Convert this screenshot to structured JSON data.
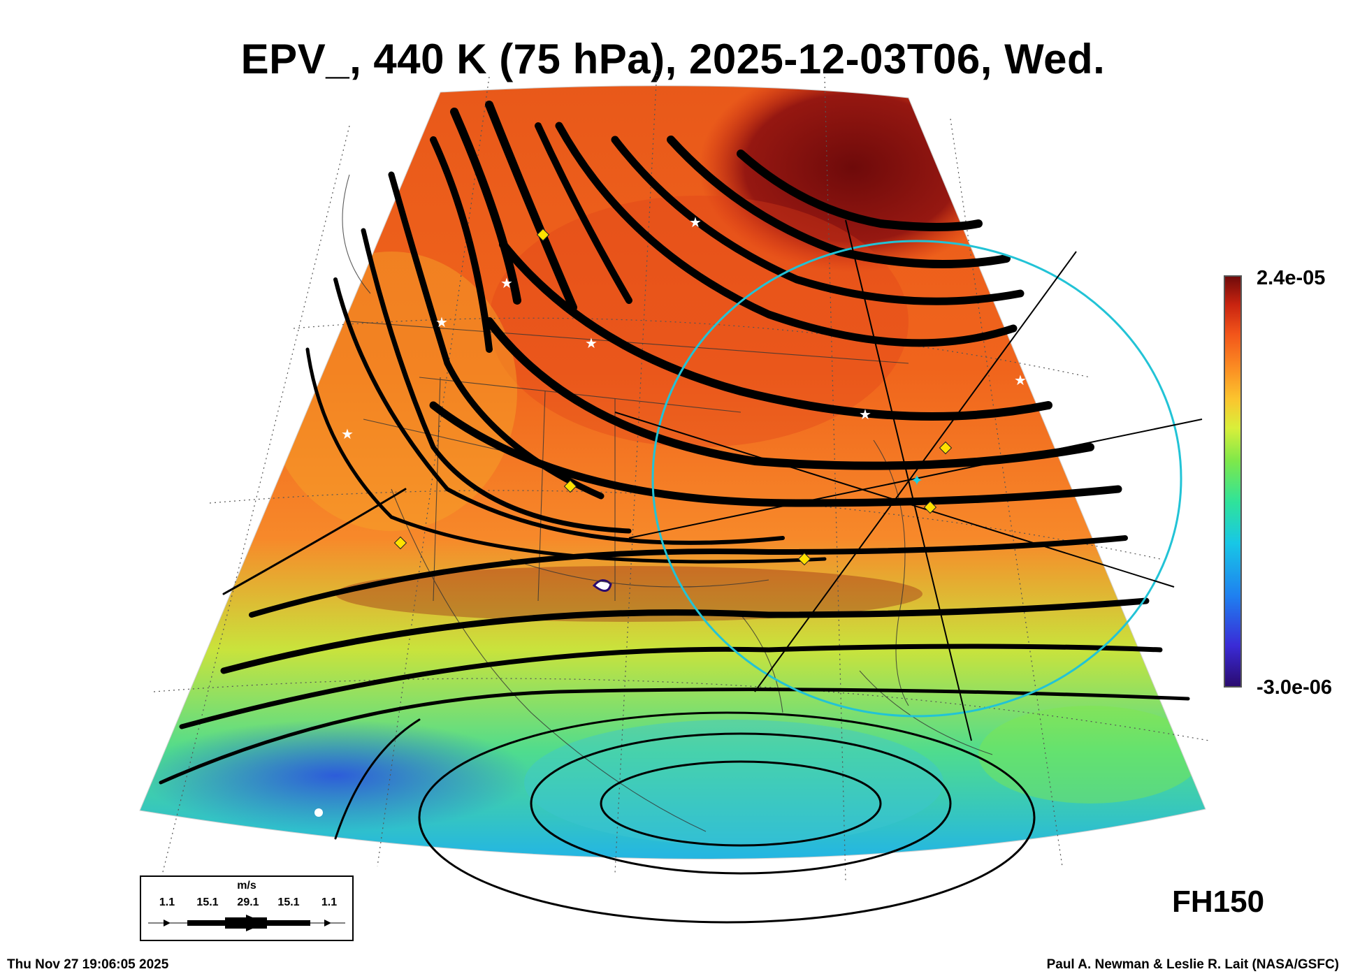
{
  "title": "EPV_, 440 K (75 hPa), 2025-12-03T06, Wed.",
  "colorbar": {
    "max_label": "2.4e-05",
    "min_label": "-3.0e-06",
    "colors": [
      "#2a0a6e",
      "#3a2bd6",
      "#1f7ff0",
      "#18c7e6",
      "#2fe39a",
      "#7ee84a",
      "#d9ef3a",
      "#fbc52e",
      "#fb8a22",
      "#f2541a",
      "#c92410",
      "#6e0a0a"
    ]
  },
  "forecast_hour": "FH150",
  "footer": {
    "timestamp": "Thu Nov 27 19:06:05 2025",
    "credit": "Paul A. Newman & Leslie R. Lait (NASA/GSFC)"
  },
  "wind_legend": {
    "units": "m/s",
    "values": [
      "1.1",
      "15.1",
      "29.1",
      "15.1",
      "1.1"
    ]
  },
  "markers": {
    "star_color": "#ffffff",
    "diamond_color": "#ffe100",
    "center_color": "#19d2e6",
    "circle_color": "#22c3d6"
  }
}
